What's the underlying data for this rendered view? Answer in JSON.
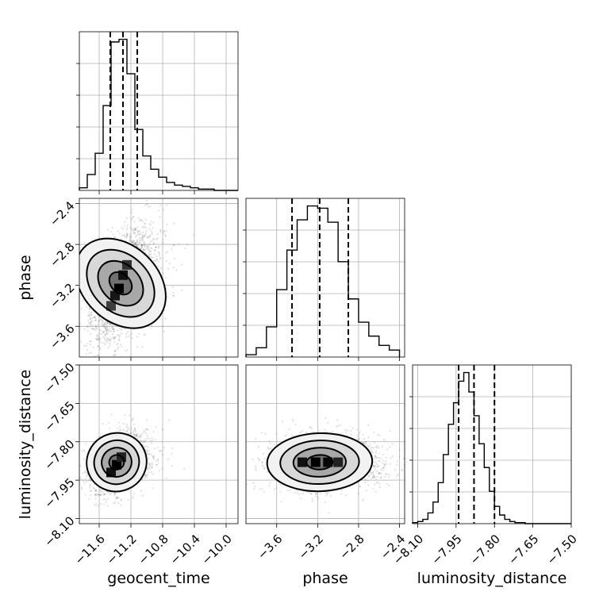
{
  "chart_data": {
    "type": "corner",
    "parameters": [
      {
        "name": "geocent_time",
        "label": "geocent_time",
        "range": [
          -11.85,
          -9.85
        ],
        "ticks": [
          -11.6,
          -11.2,
          -10.8,
          -10.4,
          -10.0
        ],
        "tick_labels": [
          "−11.6",
          "−11.2",
          "−10.8",
          "−10.4",
          "−10.0"
        ],
        "quantiles": [
          -11.46,
          -11.3,
          -11.12
        ],
        "hist": {
          "bins": [
            -11.85,
            -11.75,
            -11.65,
            -11.55,
            -11.45,
            -11.35,
            -11.25,
            -11.15,
            -11.05,
            -10.95,
            -10.85,
            -10.75,
            -10.65,
            -10.55,
            -10.45,
            -10.35,
            -10.25,
            -10.15,
            -10.05,
            -9.95,
            -9.85
          ],
          "counts": [
            2,
            12,
            28,
            64,
            112,
            114,
            88,
            46,
            26,
            16,
            10,
            6,
            4,
            3,
            2,
            1,
            1,
            0,
            0,
            0
          ]
        }
      },
      {
        "name": "phase",
        "label": "phase",
        "range": [
          -3.9,
          -2.35
        ],
        "ticks": [
          -3.6,
          -3.2,
          -2.8,
          -2.4
        ],
        "tick_labels": [
          "−3.6",
          "−3.2",
          "−2.8",
          "−2.4"
        ],
        "quantiles": [
          -3.45,
          -3.18,
          -2.9
        ],
        "hist": {
          "bins": [
            -3.9,
            -3.8,
            -3.7,
            -3.6,
            -3.5,
            -3.4,
            -3.3,
            -3.2,
            -3.1,
            -3.0,
            -2.9,
            -2.8,
            -2.7,
            -2.6,
            -2.5,
            -2.4
          ],
          "counts": [
            2,
            8,
            26,
            58,
            92,
            118,
            130,
            128,
            116,
            82,
            50,
            30,
            18,
            10,
            6
          ]
        }
      },
      {
        "name": "luminosity_distance",
        "label": "luminosity_distance",
        "range": [
          -8.12,
          -7.5
        ],
        "ticks": [
          -8.1,
          -7.95,
          -7.8,
          -7.65,
          -7.5
        ],
        "tick_labels": [
          "−8.10",
          "−7.95",
          "−7.80",
          "−7.65",
          "−7.50"
        ],
        "quantiles": [
          -7.94,
          -7.88,
          -7.8
        ],
        "hist": {
          "bins": [
            -8.12,
            -8.1,
            -8.08,
            -8.06,
            -8.04,
            -8.02,
            -8.0,
            -7.98,
            -7.96,
            -7.94,
            -7.92,
            -7.9,
            -7.88,
            -7.86,
            -7.84,
            -7.82,
            -7.8,
            -7.78,
            -7.76,
            -7.74,
            -7.72,
            -7.7,
            -7.68,
            -7.66,
            -7.64,
            -7.62,
            -7.6,
            -7.58,
            -7.56,
            -7.54,
            -7.52,
            -7.5
          ],
          "counts": [
            1,
            2,
            4,
            10,
            20,
            38,
            64,
            92,
            112,
            132,
            140,
            122,
            100,
            74,
            52,
            30,
            16,
            8,
            4,
            2,
            1,
            1,
            0,
            0,
            0,
            0,
            0,
            0,
            0,
            0,
            0
          ]
        }
      }
    ],
    "pairs": [
      {
        "x": "geocent_time",
        "y": "phase",
        "mean": [
          -11.33,
          -3.18
        ],
        "sd": [
          0.18,
          0.26
        ],
        "corr": 0.55,
        "density_cells": [
          {
            "x": -11.35,
            "y": -3.23,
            "level": 1.0
          },
          {
            "x": -11.3,
            "y": -3.1,
            "level": 0.85
          },
          {
            "x": -11.4,
            "y": -3.3,
            "level": 0.8
          },
          {
            "x": -11.25,
            "y": -3.0,
            "level": 0.55
          },
          {
            "x": -11.45,
            "y": -3.4,
            "level": 0.45
          }
        ]
      },
      {
        "x": "geocent_time",
        "y": "luminosity_distance",
        "mean": [
          -11.38,
          -7.88
        ],
        "sd": [
          0.15,
          0.055
        ],
        "corr": 0.35,
        "density_cells": [
          {
            "x": -11.38,
            "y": -7.89,
            "level": 1.0
          },
          {
            "x": -11.45,
            "y": -7.92,
            "level": 0.85
          },
          {
            "x": -11.32,
            "y": -7.86,
            "level": 0.7
          }
        ]
      },
      {
        "x": "phase",
        "y": "luminosity_distance",
        "mean": [
          -3.18,
          -7.88
        ],
        "sd": [
          0.22,
          0.05
        ],
        "corr": 0.05,
        "density_cells": [
          {
            "x": -3.22,
            "y": -7.88,
            "level": 1.0
          },
          {
            "x": -3.1,
            "y": -7.88,
            "level": 0.95
          },
          {
            "x": -3.35,
            "y": -7.88,
            "level": 0.85
          },
          {
            "x": -3.0,
            "y": -7.88,
            "level": 0.7
          }
        ]
      }
    ],
    "contour_levels_sigma": [
      0.5,
      1.0,
      1.5,
      2.0
    ],
    "grid": true,
    "title": ""
  }
}
